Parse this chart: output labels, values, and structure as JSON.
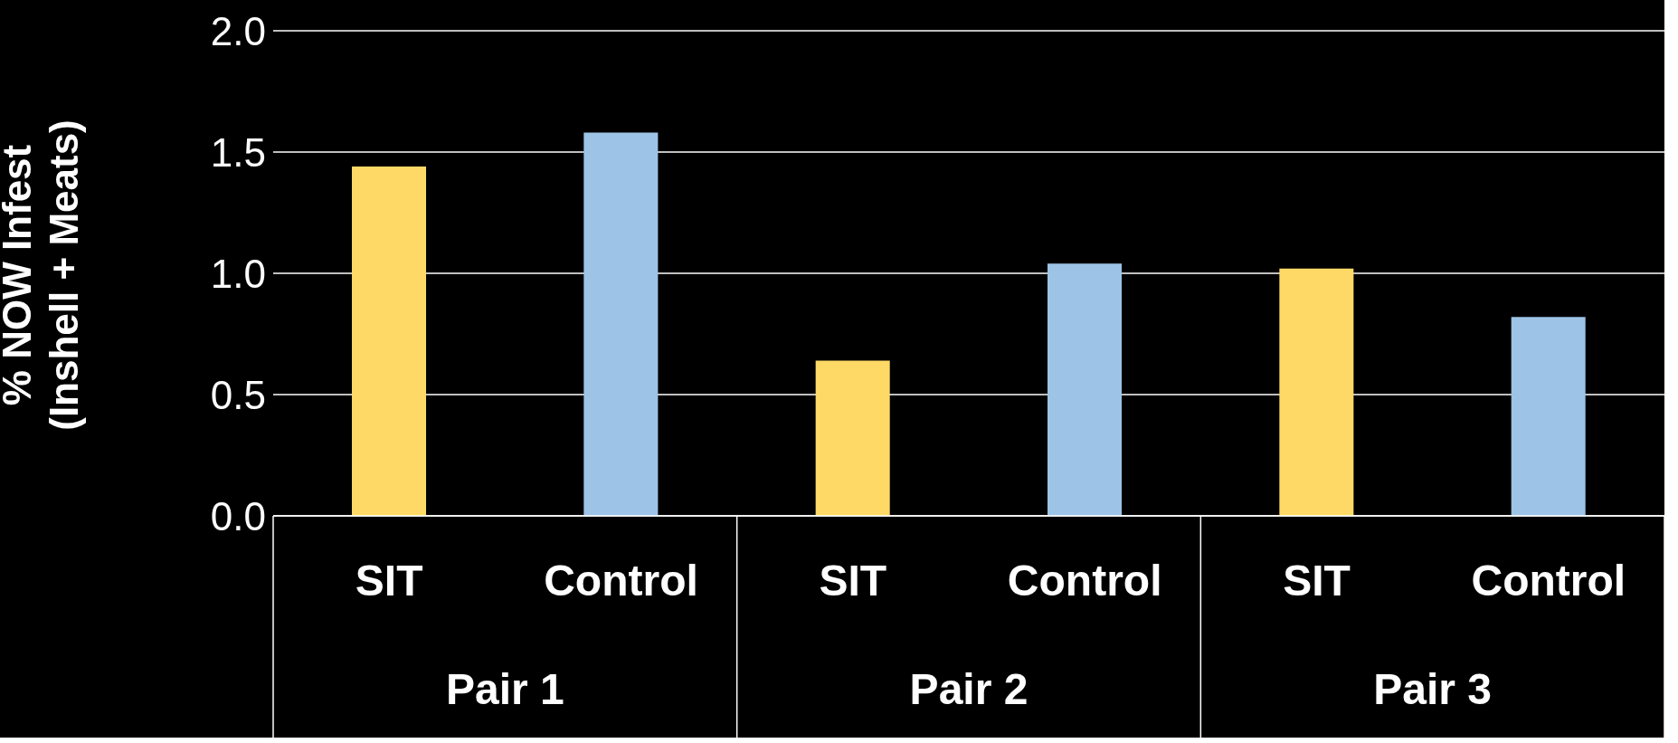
{
  "chart_data": {
    "type": "bar",
    "ylabel": "% NOW Infest\n(Inshell + Meats)",
    "categories": [
      "Pair 1",
      "Pair 2",
      "Pair 3"
    ],
    "series": [
      {
        "name": "SIT",
        "color": "#ffd966",
        "values": [
          1.44,
          0.64,
          1.02
        ]
      },
      {
        "name": "Control",
        "color": "#9dc3e6",
        "values": [
          1.58,
          1.04,
          0.82
        ]
      }
    ],
    "ylim": [
      0,
      2
    ],
    "yticks": [
      {
        "value": 0,
        "label": "0.0"
      },
      {
        "value": 0.5,
        "label": "0.5"
      },
      {
        "value": 1,
        "label": "1.0"
      },
      {
        "value": 1.5,
        "label": "1.5"
      },
      {
        "value": 2,
        "label": "2.0"
      }
    ],
    "grid": "y",
    "legend": false
  }
}
